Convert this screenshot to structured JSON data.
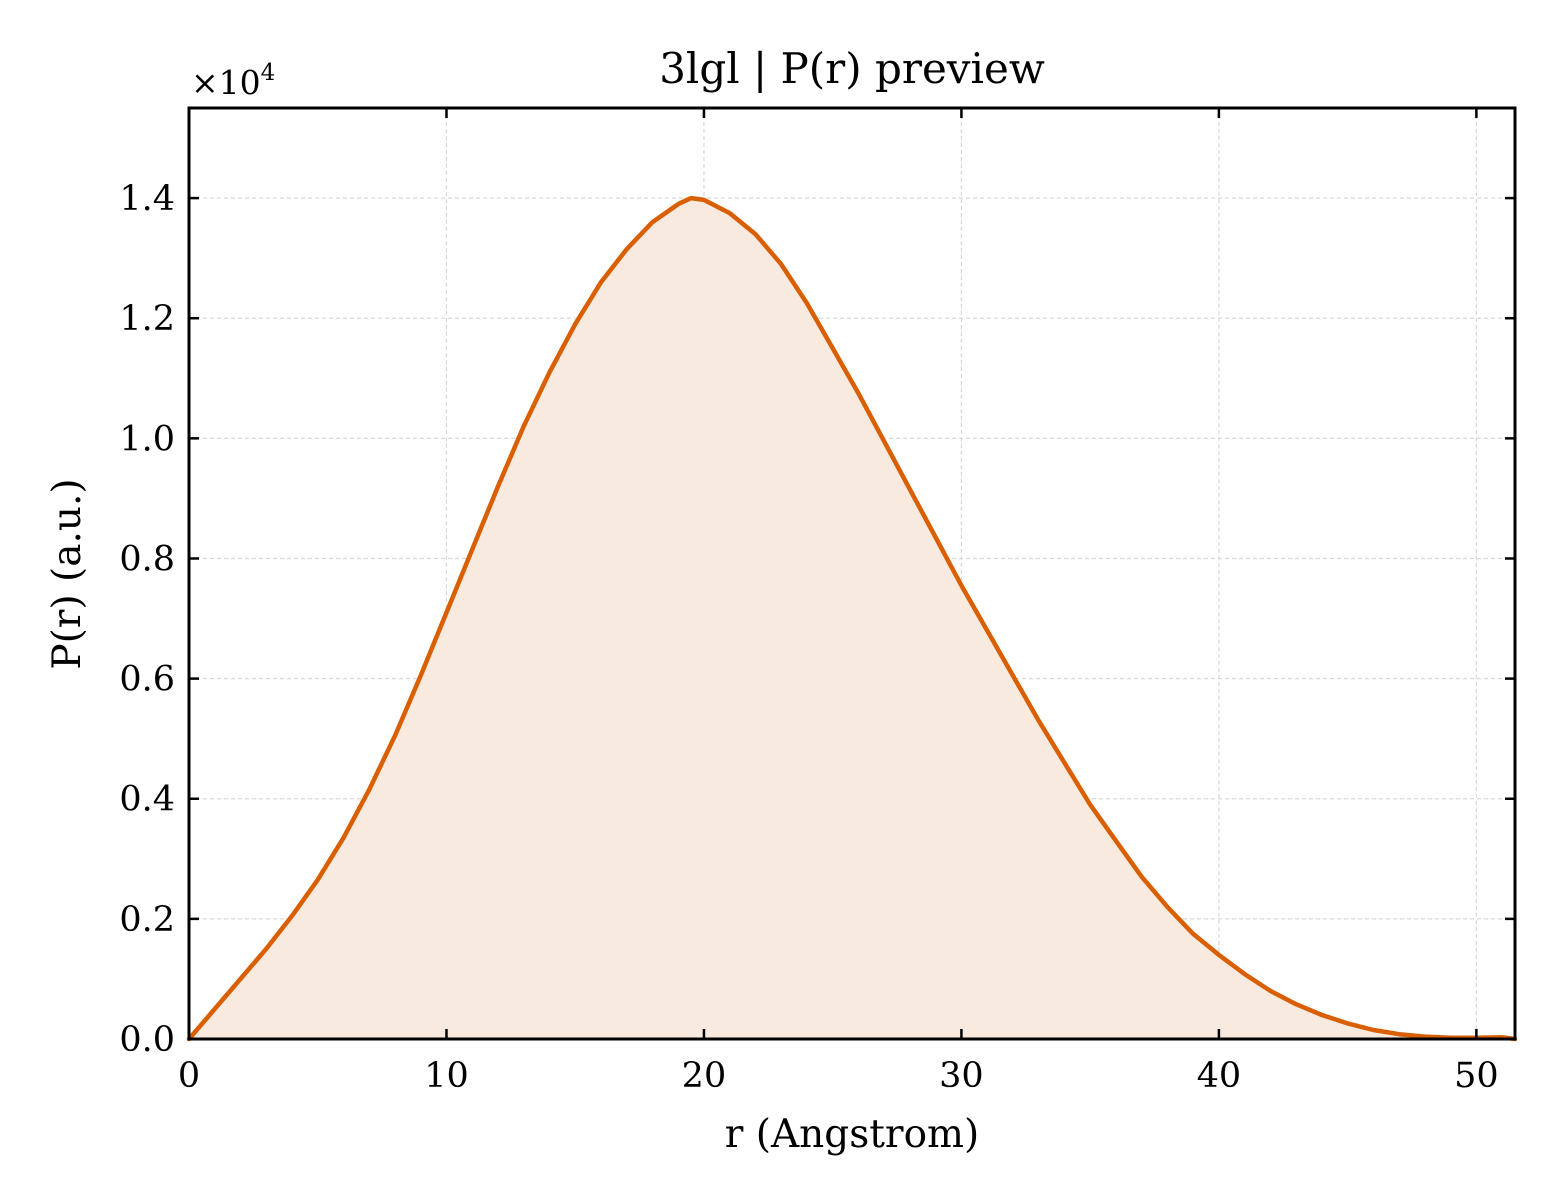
{
  "chart_data": {
    "type": "area",
    "title": "3lgl | P(r) preview",
    "xlabel": "r (Angstrom)",
    "ylabel": "P(r) (a.u.)",
    "y_multiplier_base": "×10",
    "y_multiplier_exp": "4",
    "xlim": [
      0,
      51.5
    ],
    "ylim": [
      0,
      1.55
    ],
    "x_ticks": [
      0,
      10,
      20,
      30,
      40,
      50
    ],
    "x_tick_labels": [
      "0",
      "10",
      "20",
      "30",
      "40",
      "50"
    ],
    "y_ticks": [
      0,
      0.2,
      0.4,
      0.6,
      0.8,
      1.0,
      1.2,
      1.4
    ],
    "y_tick_labels": [
      "0.0",
      "0.2",
      "0.4",
      "0.6",
      "0.8",
      "1.0",
      "1.2",
      "1.4"
    ],
    "grid": true,
    "colors": {
      "line": "#d95f02",
      "fill": "#f8eadf",
      "grid": "#d9d9d9"
    },
    "series": [
      {
        "x": [
          0,
          1,
          2,
          3,
          4,
          5,
          6,
          7,
          8,
          9,
          10,
          11,
          12,
          13,
          14,
          15,
          16,
          17,
          18,
          19,
          19.5,
          20,
          21,
          22,
          23,
          24,
          25,
          26,
          27,
          28,
          29,
          30,
          31,
          32,
          33,
          34,
          35,
          36,
          37,
          38,
          39,
          40,
          41,
          42,
          43,
          44,
          45,
          46,
          47,
          48,
          49,
          50,
          51,
          51.5
        ],
        "y": [
          0.0,
          0.05,
          0.1,
          0.15,
          0.205,
          0.265,
          0.335,
          0.415,
          0.505,
          0.605,
          0.71,
          0.815,
          0.92,
          1.02,
          1.11,
          1.19,
          1.26,
          1.315,
          1.36,
          1.39,
          1.4,
          1.397,
          1.375,
          1.34,
          1.29,
          1.225,
          1.15,
          1.075,
          0.995,
          0.915,
          0.835,
          0.755,
          0.68,
          0.605,
          0.53,
          0.46,
          0.39,
          0.33,
          0.27,
          0.22,
          0.175,
          0.14,
          0.108,
          0.08,
          0.058,
          0.04,
          0.026,
          0.015,
          0.008,
          0.004,
          0.002,
          0.002,
          0.003,
          0.0
        ]
      }
    ]
  }
}
